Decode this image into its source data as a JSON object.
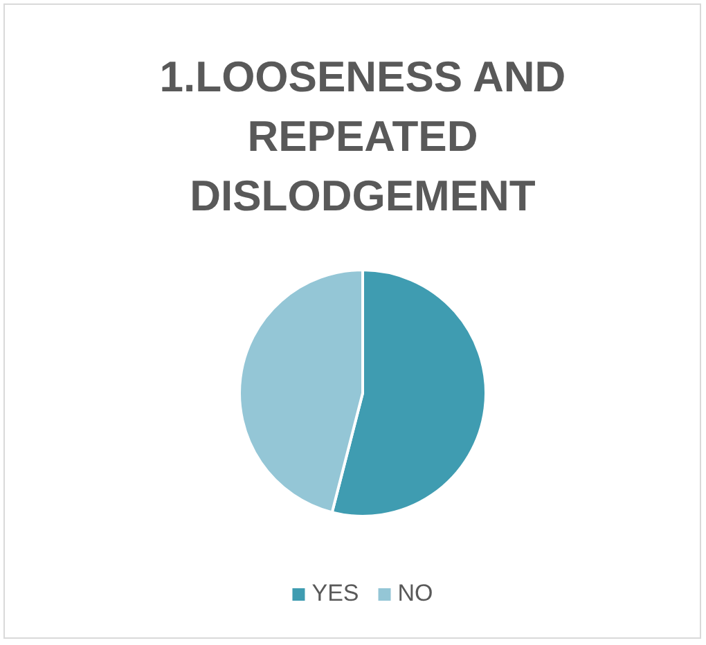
{
  "chart_data": {
    "type": "pie",
    "title": "1.LOOSENESS AND REPEATED DISLODGEMENT",
    "categories": [
      "YES",
      "NO"
    ],
    "values": [
      54,
      46
    ],
    "colors": [
      "#3f9cb1",
      "#94c6d6"
    ],
    "legend": "bottom"
  }
}
